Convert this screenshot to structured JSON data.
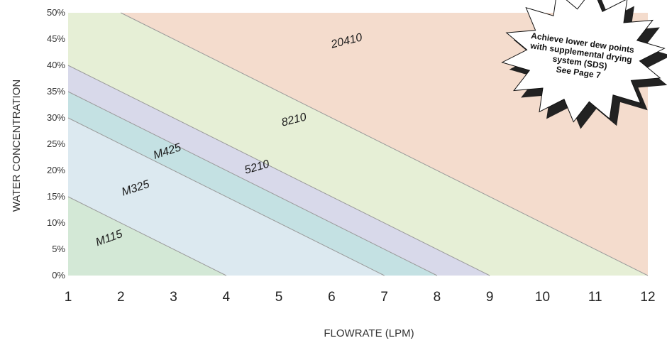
{
  "chart_data": {
    "type": "area",
    "xlabel": "FLOWRATE (LPM)",
    "ylabel": "WATER CONCENTRATION",
    "xlim": [
      1,
      12
    ],
    "ylim": [
      0,
      50
    ],
    "x_ticks": [
      "1",
      "2",
      "3",
      "4",
      "5",
      "6",
      "7",
      "8",
      "9",
      "10",
      "11",
      "12"
    ],
    "y_ticks": [
      "0%",
      "5%",
      "10%",
      "15%",
      "20%",
      "25%",
      "30%",
      "35%",
      "40%",
      "45%",
      "50%"
    ],
    "grid": false,
    "regions": [
      {
        "name": "20410",
        "color": "#f4dccd",
        "boundary": [
          [
            2,
            50
          ],
          [
            12,
            0
          ]
        ],
        "label_at": [
          6.3,
          44
        ],
        "angle": -14
      },
      {
        "name": "8210",
        "color": "#e6efd6",
        "boundary": [
          [
            1,
            40
          ],
          [
            9,
            0
          ]
        ],
        "label_at": [
          5.3,
          29
        ],
        "angle": -14
      },
      {
        "name": "5210",
        "color": "#d8d9ea",
        "boundary": [
          [
            1,
            35
          ],
          [
            8,
            0
          ]
        ],
        "label_at": [
          4.6,
          20
        ],
        "angle": -16
      },
      {
        "name": "M425",
        "color": "#c4e1e3",
        "boundary": [
          [
            1,
            30
          ],
          [
            7,
            0
          ]
        ],
        "label_at": [
          2.9,
          23
        ],
        "angle": -18
      },
      {
        "name": "M325",
        "color": "#dce9f0",
        "boundary": [
          [
            1,
            15
          ],
          [
            4,
            0
          ]
        ],
        "label_at": [
          2.3,
          16
        ],
        "angle": -18
      },
      {
        "name": "M115",
        "color": "#d3e8d6",
        "boundary": [],
        "label_at": [
          1.8,
          6.5
        ],
        "angle": -20
      }
    ],
    "line_color": "#9a9a9a",
    "callout": {
      "lines": [
        "Achieve lower dew points",
        "with supplemental drying",
        "system (SDS)",
        "See Page 7"
      ],
      "fill": "#ffffff",
      "shadow": "#222222"
    }
  }
}
